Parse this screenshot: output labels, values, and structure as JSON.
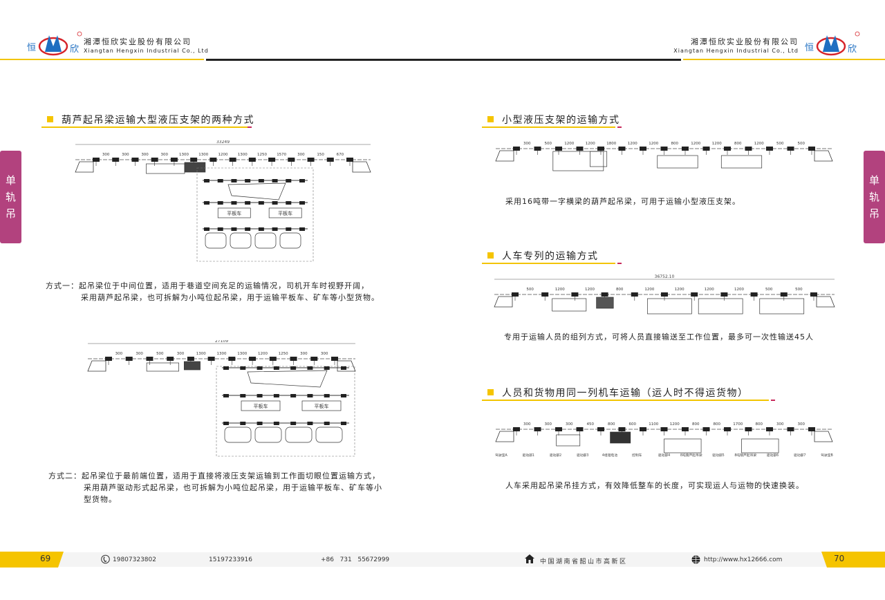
{
  "header": {
    "company_cn": "湘潭恒欣实业股份有限公司",
    "company_en": "Xiangtan Hengxin Industrial Co., Ltd",
    "logo_text": [
      "恒",
      "欣"
    ],
    "colors": {
      "yellow": "#f2c400",
      "black": "#222222",
      "logo_red": "#d6242a",
      "logo_blue": "#1f6fc1"
    }
  },
  "side_tab": {
    "chars": [
      "单",
      "轨",
      "吊"
    ],
    "color": "#b2427e"
  },
  "left": {
    "title": "葫芦起吊梁运输大型液压支架的两种方式",
    "diagram1": {
      "total": "33249",
      "dimensions": [
        "300",
        "300",
        "300",
        "300",
        "1300",
        "1300",
        "1200",
        "1300",
        "1250",
        "1570",
        "300",
        "150",
        "670"
      ],
      "sub_labels": [
        "平板车",
        "平板车"
      ]
    },
    "method1": {
      "line1": "方式一：起吊梁位于中间位置，适用于巷道空间充足的运输情况，司机开车时视野开阔，",
      "line2": "采用葫芦起吊梁，也可拆解为小吨位起吊梁，用于运输平板车、矿车等小型货物。"
    },
    "diagram2": {
      "total": "27109",
      "dimensions": [
        "300",
        "300",
        "500",
        "300",
        "1300",
        "1300",
        "1300",
        "1200",
        "1250",
        "300",
        "300"
      ],
      "sub_labels": [
        "平板车",
        "平板车"
      ]
    },
    "method2": {
      "line1": "方式二：起吊梁位于最前端位置，适用于直接将液压支架运输到工作面切眼位置运输方式，",
      "line2": "采用葫芦驱动形式起吊梁，也可拆解为小吨位起吊梁，用于运输平板车、矿车等小",
      "line3": "型货物。"
    }
  },
  "right": {
    "section1": {
      "title": "小型液压支架的运输方式",
      "dimensions": [
        "300",
        "500",
        "1200",
        "1200",
        "1800",
        "1200",
        "1200",
        "800",
        "1200",
        "1200",
        "800",
        "1200",
        "500",
        "500"
      ],
      "caption": "采用16吨带一字横梁的葫芦起吊梁，可用于运输小型液压支架。"
    },
    "section2": {
      "title": "人车专列的运输方式",
      "total": "36752.10",
      "dimensions": [
        "500",
        "1200",
        "1200",
        "800",
        "1200",
        "1200",
        "1200",
        "1200",
        "500",
        "500"
      ],
      "caption": "专用于运输人员的组列方式，可将人员直接输送至工作位置，最多可一次性输送45人"
    },
    "section3": {
      "title": "人员和货物用同一列机车运输（运人时不得运货物）",
      "dimensions": [
        "300",
        "300",
        "300",
        "450",
        "800",
        "600",
        "1100",
        "1200",
        "800",
        "800",
        "1700",
        "800",
        "300",
        "300"
      ],
      "labels": [
        "驾驶室A",
        "驱动部1",
        "驱动部2",
        "驱动部3",
        "4组锂电池",
        "控制车",
        "驱动部4",
        "8吨葫芦起吊梁",
        "驱动部5",
        "8吨葫芦起吊梁",
        "驱动部6",
        "驱动部7",
        "驾驶室B"
      ],
      "caption": "人车采用起吊梁吊挂方式，有效降低整车的长度，可实现运人与运物的快速换装。"
    }
  },
  "footer": {
    "page_left": "69",
    "page_right": "70",
    "phone1": "19807323802",
    "phone2": "15197233916",
    "landline": "+86   731   55672999",
    "address": "中国湖南省韶山市高新区",
    "website": "http://www.hx12666.com",
    "icons": [
      "phone-icon",
      "home-icon",
      "globe-icon"
    ]
  }
}
